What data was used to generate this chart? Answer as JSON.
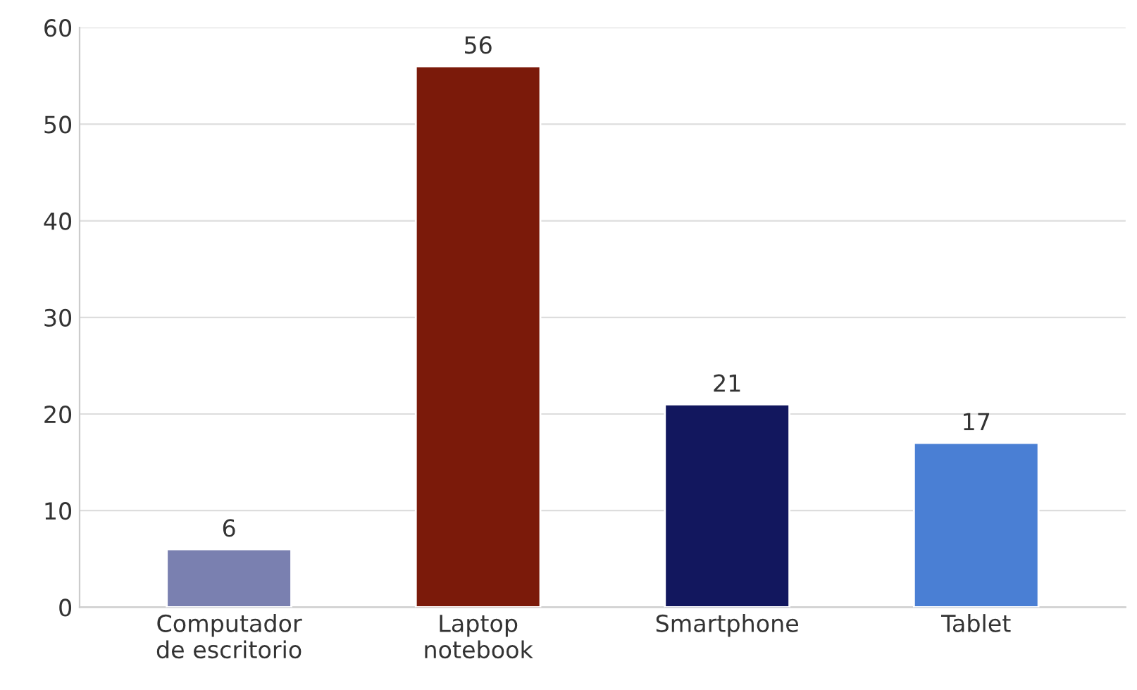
{
  "chart_data": {
    "type": "bar",
    "categories": [
      "Computador\nde escritorio",
      "Laptop\nnotebook",
      "Smartphone",
      "Tablet"
    ],
    "values": [
      6,
      56,
      21,
      17
    ],
    "colors": [
      "#7a80b0",
      "#7b1a0a",
      "#12175e",
      "#4a7fd4"
    ],
    "ylim": [
      0,
      60
    ],
    "yticks": [
      0,
      10,
      20,
      30,
      40,
      50,
      60
    ],
    "grid": "y",
    "data_labels": true
  }
}
